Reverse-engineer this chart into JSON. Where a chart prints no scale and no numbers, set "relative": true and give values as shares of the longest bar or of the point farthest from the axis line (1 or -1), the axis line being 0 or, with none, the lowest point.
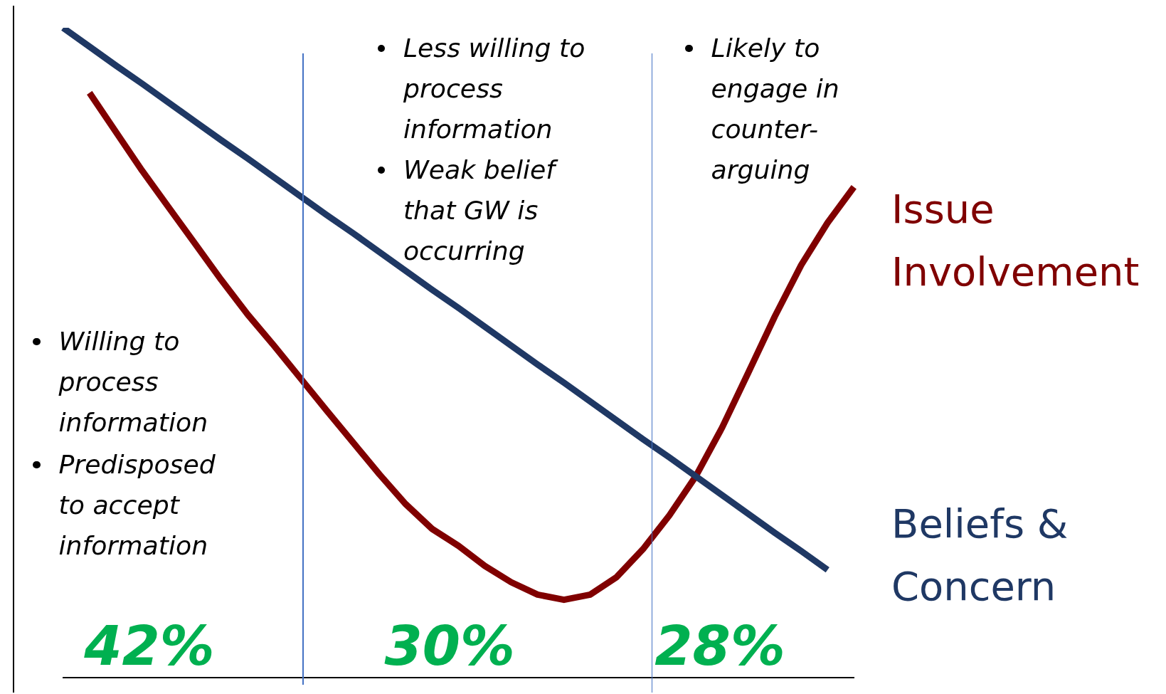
{
  "chart_data": {
    "type": "line",
    "relative": true,
    "categories": [
      null,
      null,
      null,
      null,
      null,
      null,
      null,
      null,
      null,
      null,
      null,
      null,
      null,
      null,
      null,
      null,
      null,
      null,
      null,
      null,
      null,
      null,
      null,
      null,
      null,
      null,
      null,
      null,
      null,
      null,
      null
    ],
    "series": [
      {
        "name": "Beliefs & Concern",
        "color": "#1f3864",
        "values": [
          1.0,
          0.971,
          0.942,
          0.914,
          0.885,
          0.856,
          0.827,
          0.799,
          0.77,
          0.741,
          0.712,
          0.684,
          0.655,
          0.626,
          0.597,
          0.569,
          0.54,
          0.511,
          0.482,
          0.454,
          0.425,
          0.396,
          0.367,
          0.339,
          0.31,
          0.281,
          0.252,
          0.223,
          0.195,
          0.166,
          null
        ]
      },
      {
        "name": "Issue Involvement",
        "color": "#800000",
        "values": [
          null,
          0.9,
          0.84,
          0.78,
          0.724,
          0.668,
          0.612,
          0.559,
          0.511,
          0.461,
          0.411,
          0.362,
          0.313,
          0.267,
          0.229,
          0.203,
          0.172,
          0.147,
          0.128,
          0.12,
          0.128,
          0.155,
          0.198,
          0.25,
          0.31,
          0.385,
          0.47,
          0.556,
          0.635,
          0.7,
          0.755
        ]
      }
    ],
    "annotations": [
      "Willing to process information",
      "Predisposed to accept information",
      "Less willing to process information",
      "Weak belief that GW is occurring",
      "Likely to engage in counter-arguing",
      "42%",
      "30%",
      "28%"
    ]
  }
}
